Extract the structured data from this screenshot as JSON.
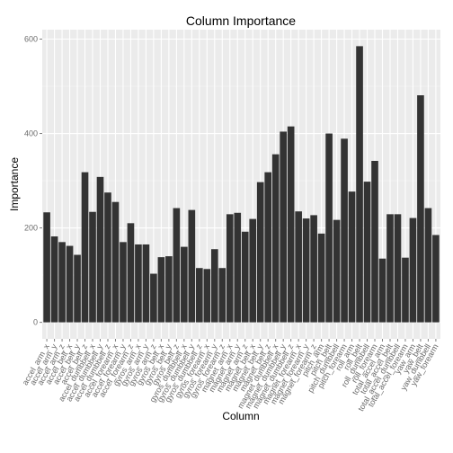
{
  "chart_data": {
    "type": "bar",
    "title": "Column Importance",
    "xlabel": "Column",
    "ylabel": "Importance",
    "ylim": [
      -35,
      620
    ],
    "yticks": [
      0,
      200,
      400,
      600
    ],
    "grid": true,
    "bar_color": "#333333",
    "panel_color": "#ebebeb",
    "categories": [
      "accel_arm_x",
      "accel_arm_y",
      "accel_arm_z",
      "accel_belt_x",
      "accel_belt_y",
      "accel_belt_z",
      "accel_dumbbell_x",
      "accel_dumbbell_y",
      "accel_dumbbell_z",
      "accel_forearm_x",
      "accel_forearm_y",
      "accel_forearm_z",
      "gyros_arm_x",
      "gyros_arm_y",
      "gyros_arm_z",
      "gyros_belt_x",
      "gyros_belt_y",
      "gyros_belt_z",
      "gyros_dumbbell_x",
      "gyros_dumbbell_y",
      "gyros_dumbbell_z",
      "gyros_forearm_x",
      "gyros_forearm_y",
      "gyros_forearm_z",
      "magnet_arm_x",
      "magnet_arm_y",
      "magnet_arm_z",
      "magnet_belt_x",
      "magnet_belt_y",
      "magnet_belt_z",
      "magnet_dumbbell_x",
      "magnet_dumbbell_y",
      "magnet_dumbbell_z",
      "magnet_forearm_x",
      "magnet_forearm_y",
      "magnet_forearm_z",
      "pitch_arm",
      "pitch_belt",
      "pitch_dumbbell",
      "pitch_forearm",
      "roll_arm",
      "roll_belt",
      "roll_dumbbell",
      "roll_forearm",
      "total_accel_arm",
      "total_accel_belt",
      "total_accel_dumbbell",
      "total_accel_forearm",
      "yaw_arm",
      "yaw_belt",
      "yaw_dumbbell",
      "yaw_forearm"
    ],
    "values": [
      233,
      182,
      170,
      162,
      143,
      318,
      234,
      308,
      275,
      255,
      170,
      210,
      165,
      165,
      103,
      138,
      140,
      242,
      160,
      238,
      115,
      113,
      155,
      115,
      229,
      232,
      192,
      219,
      297,
      318,
      356,
      404,
      415,
      235,
      220,
      227,
      188,
      400,
      217,
      389,
      277,
      585,
      298,
      342,
      135,
      229,
      229,
      137,
      221,
      481,
      242,
      185
    ]
  }
}
